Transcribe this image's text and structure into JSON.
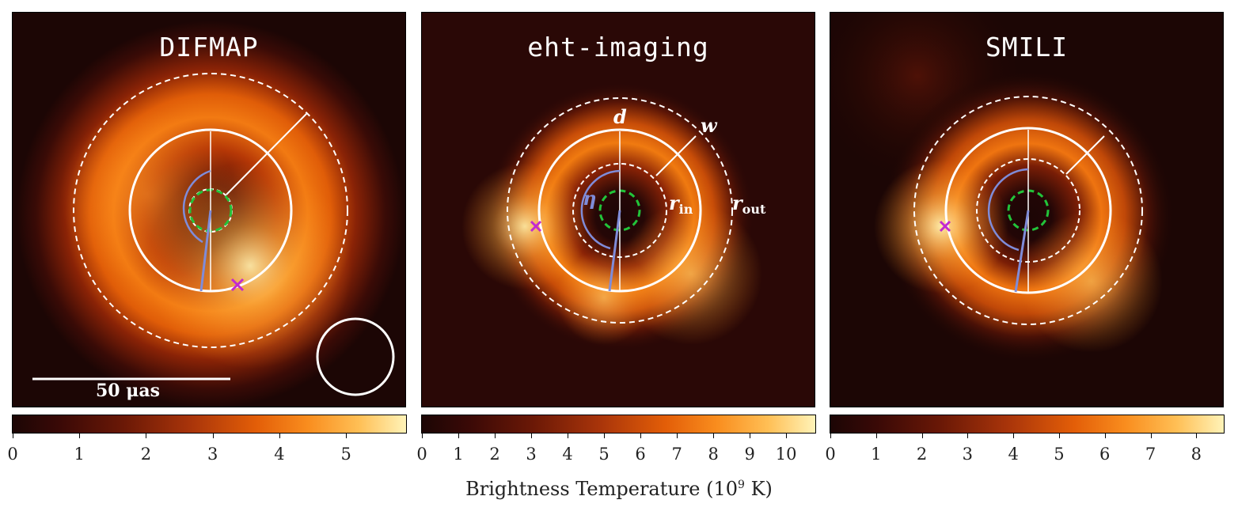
{
  "panels": [
    {
      "title": "DIFMAP",
      "ticks": [
        "0",
        "1",
        "2",
        "3",
        "4",
        "5"
      ],
      "max": 5.9
    },
    {
      "title": "eht-imaging",
      "ticks": [
        "0",
        "1",
        "2",
        "3",
        "4",
        "5",
        "6",
        "7",
        "8",
        "9",
        "10"
      ],
      "max": 10.8
    },
    {
      "title": "SMILI",
      "ticks": [
        "0",
        "1",
        "2",
        "3",
        "4",
        "5",
        "6",
        "7",
        "8"
      ],
      "max": 8.6
    }
  ],
  "annotations": {
    "d": "d",
    "w": "w",
    "eta": "η",
    "r": "r",
    "in": "in",
    "out": "out"
  },
  "scale_bar": "50 μas",
  "colorbar_label": "Brightness Temperature (10",
  "colorbar_exp": "9",
  "colorbar_unit": " K)",
  "colors": {
    "background": "#1c0605",
    "ring_mid": "#e85a08",
    "ring_bright": "#ffd36b",
    "marker": "#c22ad0",
    "inner_circle": "#22c43a",
    "eta_arc": "#7f8cd9"
  }
}
